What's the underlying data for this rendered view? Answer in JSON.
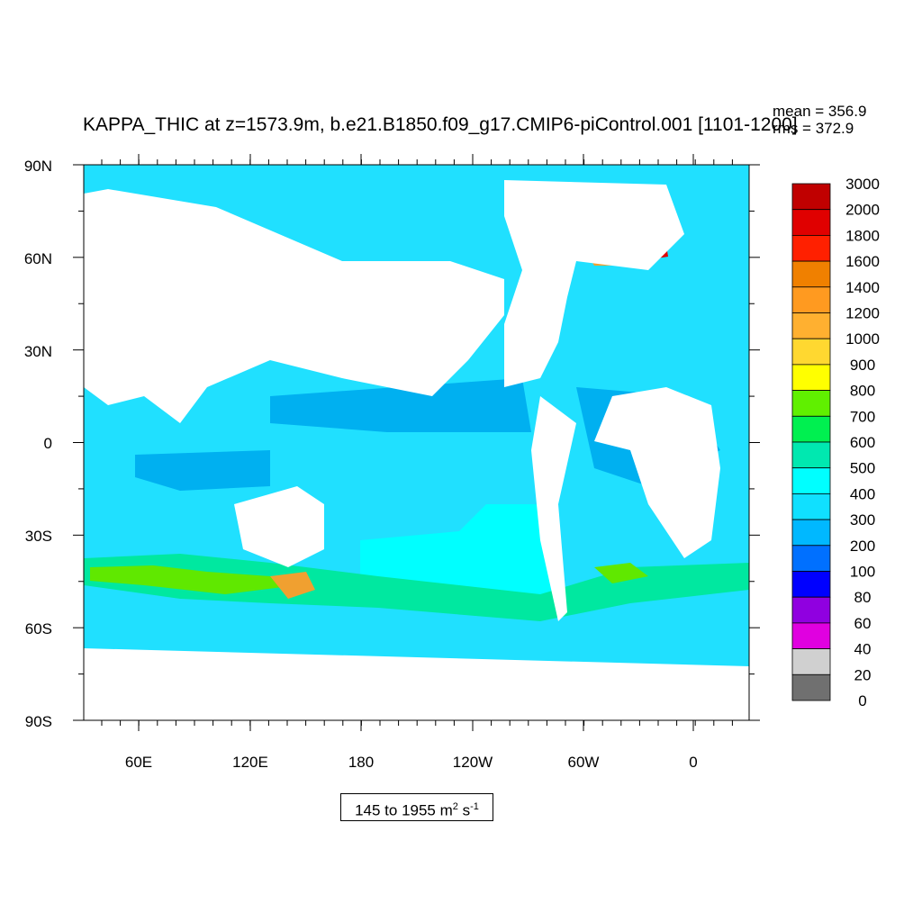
{
  "title": "KAPPA_THIC at z=1573.9m, b.e21.B1850.f09_g17.CMIP6-piControl.001 [1101-1200]",
  "stats": {
    "mean": "mean = 356.9",
    "rms": "rms = 372.9"
  },
  "lat_ticks": [
    "90N",
    "60N",
    "30N",
    "0",
    "30S",
    "60S",
    "90S"
  ],
  "lon_ticks": [
    "60E",
    "120E",
    "180",
    "120W",
    "60W",
    "0"
  ],
  "colorbar": {
    "levels": [
      "3000",
      "2000",
      "1800",
      "1600",
      "1400",
      "1200",
      "1000",
      "900",
      "800",
      "700",
      "600",
      "500",
      "400",
      "300",
      "200",
      "100",
      "80",
      "60",
      "40",
      "20",
      "0"
    ],
    "colors": [
      "#c00000",
      "#e00000",
      "#ff2000",
      "#f08000",
      "#ff9a20",
      "#ffb030",
      "#ffd830",
      "#ffff00",
      "#60f000",
      "#00f050",
      "#00e8b0",
      "#00ffff",
      "#10e0ff",
      "#00b8ff",
      "#0070ff",
      "#0000ff",
      "#9000e0",
      "#e000e0",
      "#d0d0d0",
      "#707070"
    ]
  },
  "range": {
    "text": "145 to 1955 m",
    "sup1": "2",
    "text2": " s",
    "sup2": "-1"
  },
  "map_colors": {
    "ocean": "#20e0ff",
    "warm_pool": "#00b0f0",
    "southern": "#00ffff",
    "acc": "#00e8a0",
    "acc_strong": "#60e800",
    "hot": "#f0a030",
    "land": "#ffffff"
  }
}
